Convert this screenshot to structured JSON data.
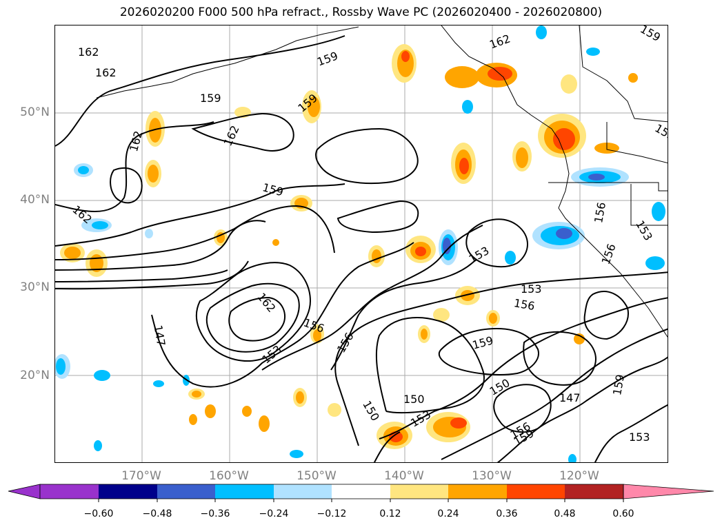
{
  "title": "2026020200 F000 500 hPa refract., Rossby Wave PC (2026020400 - 2026020800)",
  "map": {
    "lon_range": [
      -180,
      -110
    ],
    "lat_range": [
      10,
      60
    ],
    "lat_ticks": [
      "20°N",
      "30°N",
      "40°N",
      "50°N"
    ],
    "lon_ticks": [
      "170°W",
      "160°W",
      "150°W",
      "140°W",
      "130°W",
      "120°W"
    ],
    "grid": true,
    "contour_labels": [
      "162",
      "162",
      "159",
      "159",
      "159",
      "162",
      "162",
      "162",
      "159",
      "162",
      "162",
      "147",
      "156",
      "156",
      "153",
      "153",
      "150",
      "150",
      "153",
      "159",
      "150",
      "153",
      "156",
      "153",
      "147",
      "156",
      "156",
      "153",
      "159",
      "159",
      "153",
      "156",
      "159"
    ]
  },
  "colorbar": {
    "ticks": [
      "−0.60",
      "−0.48",
      "−0.36",
      "−0.24",
      "−0.12",
      "0.12",
      "0.24",
      "0.36",
      "0.48",
      "0.60"
    ],
    "colors": [
      "#9932cc",
      "#00008b",
      "#3a5fcd",
      "#00bfff",
      "#b0e2ff",
      "#ffffff",
      "#ffe680",
      "#ffa500",
      "#ff4500",
      "#b22222",
      "#ff88aa"
    ]
  }
}
